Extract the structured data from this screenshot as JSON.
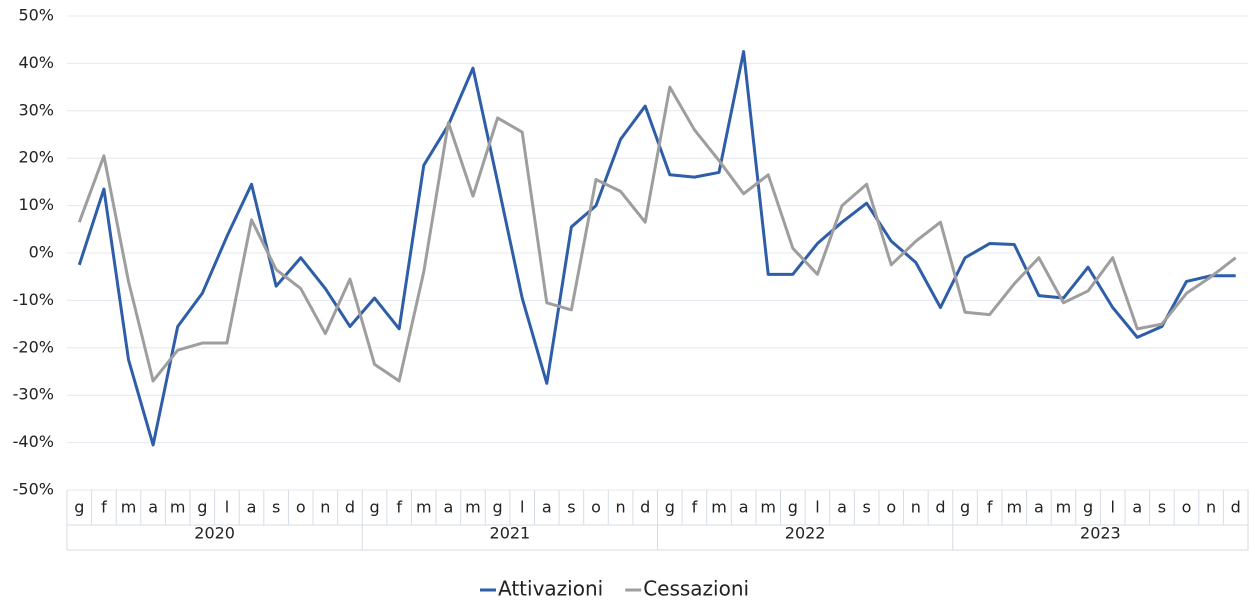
{
  "chart_data": {
    "type": "line",
    "categories": [
      "g",
      "f",
      "m",
      "a",
      "m",
      "g",
      "l",
      "a",
      "s",
      "o",
      "n",
      "d",
      "g",
      "f",
      "m",
      "a",
      "m",
      "g",
      "l",
      "a",
      "s",
      "o",
      "n",
      "d",
      "g",
      "f",
      "m",
      "a",
      "m",
      "g",
      "l",
      "a",
      "s",
      "o",
      "n",
      "d",
      "g",
      "f",
      "m",
      "a",
      "m",
      "g",
      "l",
      "a",
      "s",
      "o",
      "n",
      "d"
    ],
    "category_groups": [
      "2020",
      "2021",
      "2022",
      "2023"
    ],
    "series": [
      {
        "name": "Attivazioni",
        "color": "#2e5ea8",
        "values": [
          -2.5,
          13.5,
          -22.5,
          -40.5,
          -15.5,
          -8.5,
          3.5,
          14.5,
          -7,
          -1,
          -7.5,
          -15.5,
          -9.5,
          -16,
          18.5,
          27,
          39,
          15,
          -9.5,
          -27.5,
          5.5,
          10,
          24,
          31,
          16.5,
          16,
          17,
          42.5,
          -4.5,
          -4.5,
          2,
          6.5,
          10.5,
          2.5,
          -2,
          -11.5,
          -1,
          2,
          1.8,
          -9,
          -9.5,
          -3,
          -11.5,
          -17.8,
          -15.5,
          -6,
          -4.8,
          -4.8
        ]
      },
      {
        "name": "Cessazioni",
        "color": "#9e9e9e",
        "values": [
          6.5,
          20.5,
          -6,
          -27,
          -20.5,
          -19,
          -19,
          7,
          -3.5,
          -7.5,
          -17,
          -5.5,
          -23.5,
          -27,
          -4,
          27.5,
          12,
          28.5,
          25.5,
          -10.5,
          -12,
          15.5,
          13,
          6.5,
          35,
          26,
          19.5,
          12.5,
          16.5,
          1,
          -4.5,
          10,
          14.5,
          -2.5,
          2.5,
          6.5,
          -12.5,
          -13,
          -6.5,
          -1,
          -10.5,
          -8,
          -1,
          -16,
          -15,
          -8.5,
          -5,
          -1
        ]
      }
    ],
    "ylim": [
      -50,
      50
    ],
    "yticks": [
      {
        "value": -50,
        "label": "-50%"
      },
      {
        "value": -40,
        "label": "-40%"
      },
      {
        "value": -30,
        "label": "-30%"
      },
      {
        "value": -20,
        "label": "-20%"
      },
      {
        "value": -10,
        "label": "-10%"
      },
      {
        "value": 0,
        "label": "0%"
      },
      {
        "value": 10,
        "label": "10%"
      },
      {
        "value": 20,
        "label": "20%"
      },
      {
        "value": 30,
        "label": "30%"
      },
      {
        "value": 40,
        "label": "40%"
      },
      {
        "value": 50,
        "label": "50%"
      }
    ],
    "grid": true,
    "legend": "bottom"
  }
}
